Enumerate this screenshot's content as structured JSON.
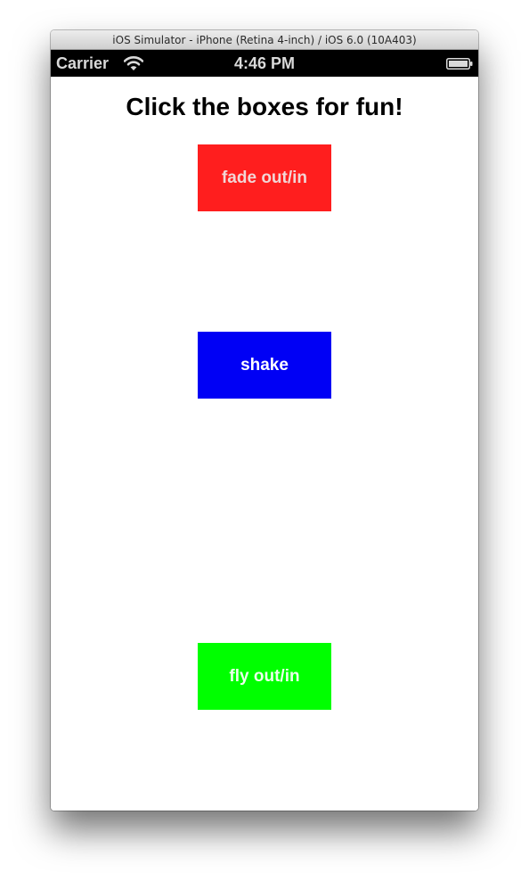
{
  "window": {
    "title": "iOS Simulator - iPhone (Retina 4-inch) / iOS 6.0 (10A403)"
  },
  "status_bar": {
    "carrier": "Carrier",
    "time": "4:46 PM",
    "wifi_icon": "wifi-icon",
    "battery_icon": "battery-icon"
  },
  "screen": {
    "heading": "Click the boxes for fun!",
    "boxes": [
      {
        "label": "fade out/in",
        "color": "#ff1e1e",
        "text_color": "#f2d6d6"
      },
      {
        "label": "shake",
        "color": "#0000f5",
        "text_color": "#ffffff"
      },
      {
        "label": "fly out/in",
        "color": "#00ff00",
        "text_color": "#eaffea"
      }
    ]
  }
}
